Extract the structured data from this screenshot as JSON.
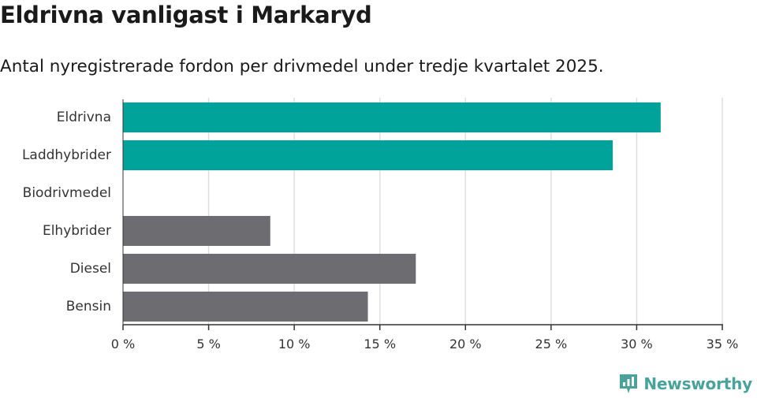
{
  "title": "Eldrivna vanligast i Markaryd",
  "subtitle": "Antal nyregistrerade fordon per drivmedel under tredje kvartalet 2025.",
  "brand": {
    "name": "Newsworthy",
    "icon": "newsworthy-logo-icon",
    "color": "#48a39a"
  },
  "chart_data": {
    "type": "bar",
    "orientation": "horizontal",
    "categories": [
      "Eldrivna",
      "Laddhybrider",
      "Biodrivmedel",
      "Elhybrider",
      "Diesel",
      "Bensin"
    ],
    "values": [
      31.4,
      28.6,
      0,
      8.6,
      17.1,
      14.3
    ],
    "colors": [
      "#00a39a",
      "#00a39a",
      "#00a39a",
      "#6d6c70",
      "#6d6c70",
      "#6d6c70"
    ],
    "xlim": [
      0,
      35
    ],
    "xticks": [
      0,
      5,
      10,
      15,
      20,
      25,
      30,
      35
    ],
    "xtick_labels": [
      "0 %",
      "5 %",
      "10 %",
      "15 %",
      "20 %",
      "25 %",
      "30 %",
      "35 %"
    ],
    "xlabel": "",
    "ylabel": "",
    "grid": true,
    "legend": "none"
  }
}
